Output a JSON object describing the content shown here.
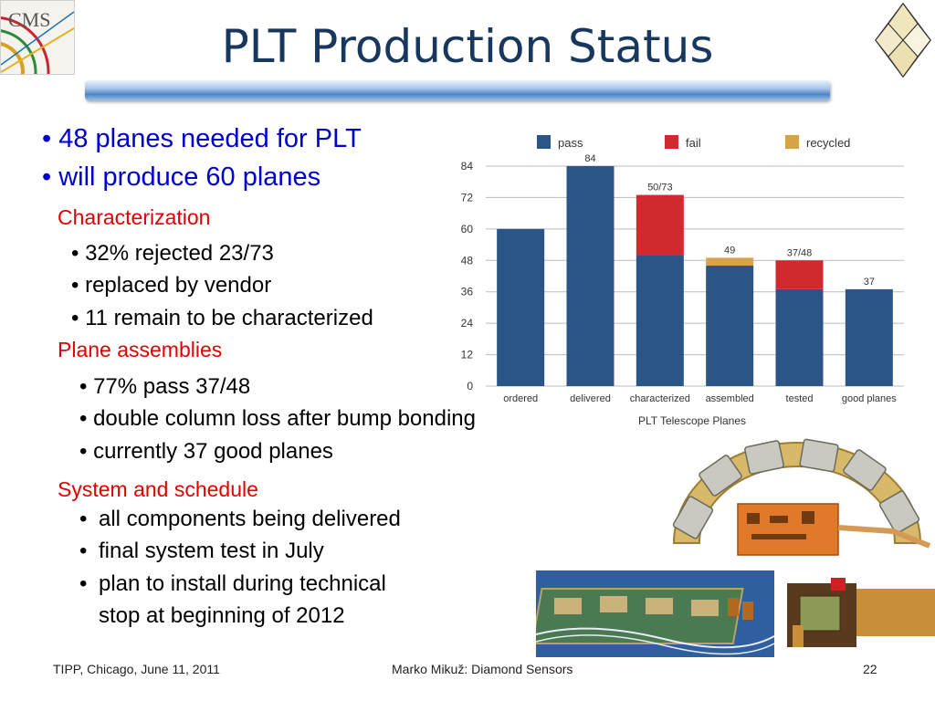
{
  "title": "PLT Production Status",
  "bullets": {
    "b1": "• 48 planes needed for PLT",
    "b2": "• will produce 60 planes"
  },
  "sections": {
    "characterization": {
      "heading": "Characterization",
      "items": [
        "• 32% rejected 23/73",
        "• replaced by vendor",
        "• 11 remain to be characterized"
      ]
    },
    "plane_assemblies": {
      "heading": "Plane assemblies",
      "items": [
        "• 77% pass 37/48",
        "• double column loss after bump bonding",
        "• currently 37 good planes"
      ]
    },
    "system": {
      "heading": "System and schedule",
      "items": [
        "•",
        "all components being delivered",
        "•",
        "final system test in July",
        "•",
        "plan to install during technical",
        "stop at beginning of 2012"
      ]
    }
  },
  "logos": {
    "cms": "CMS"
  },
  "chart_data": {
    "type": "bar",
    "title": "",
    "xlabel": "PLT Telescope Planes",
    "ylabel": "",
    "ylim": [
      0,
      84
    ],
    "yticks": [
      0,
      12,
      24,
      36,
      48,
      60,
      72,
      84
    ],
    "categories": [
      "ordered",
      "delivered",
      "characterized",
      "assembled",
      "tested",
      "good planes"
    ],
    "series": [
      {
        "name": "pass",
        "color": "#2c5587",
        "values": [
          60,
          84,
          50,
          46,
          37,
          37
        ]
      },
      {
        "name": "fail",
        "color": "#d02a2f",
        "values": [
          0,
          0,
          23,
          0,
          11,
          0
        ]
      },
      {
        "name": "recycled",
        "color": "#d8a24a",
        "values": [
          0,
          0,
          0,
          3,
          0,
          0
        ]
      }
    ],
    "bar_labels": [
      "",
      "84",
      "50/73",
      "49",
      "37/48",
      "37"
    ],
    "legend_position": "top",
    "grid": true
  },
  "footer": {
    "left": "TIPP, Chicago, June 11, 2011",
    "center": "Marko Mikuž: Diamond Sensors",
    "page": "22"
  }
}
